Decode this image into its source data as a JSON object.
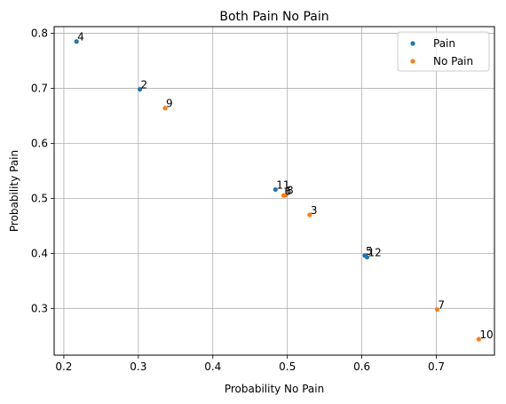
{
  "chart_data": {
    "type": "scatter",
    "title": "Both Pain No Pain",
    "xlabel": "Probability No Pain",
    "ylabel": "Probability Pain",
    "xlim": [
      0.187,
      0.778
    ],
    "ylim": [
      0.215,
      0.812
    ],
    "xticks": [
      0.2,
      0.3,
      0.4,
      0.5,
      0.6,
      0.7
    ],
    "xtick_labels": [
      "0.2",
      "0.3",
      "0.4",
      "0.5",
      "0.6",
      "0.7"
    ],
    "yticks": [
      0.3,
      0.4,
      0.5,
      0.6,
      0.7,
      0.8
    ],
    "ytick_labels": [
      "0.3",
      "0.4",
      "0.5",
      "0.6",
      "0.7",
      "0.8"
    ],
    "grid": true,
    "legend": "top-right",
    "series": [
      {
        "name": "Pain",
        "color": "#1f77b4",
        "points": [
          {
            "x": 0.217,
            "y": 0.785,
            "label": "4"
          },
          {
            "x": 0.302,
            "y": 0.698,
            "label": "2"
          },
          {
            "x": 0.484,
            "y": 0.516,
            "label": "11"
          },
          {
            "x": 0.604,
            "y": 0.396,
            "label": "5"
          },
          {
            "x": 0.607,
            "y": 0.393,
            "label": "12"
          }
        ]
      },
      {
        "name": "No Pain",
        "color": "#ff7f0e",
        "points": [
          {
            "x": 0.336,
            "y": 0.664,
            "label": "9"
          },
          {
            "x": 0.495,
            "y": 0.505,
            "label": "6"
          },
          {
            "x": 0.498,
            "y": 0.506,
            "label": "8"
          },
          {
            "x": 0.53,
            "y": 0.47,
            "label": "3"
          },
          {
            "x": 0.701,
            "y": 0.298,
            "label": "7"
          },
          {
            "x": 0.757,
            "y": 0.244,
            "label": "10"
          }
        ]
      }
    ]
  }
}
